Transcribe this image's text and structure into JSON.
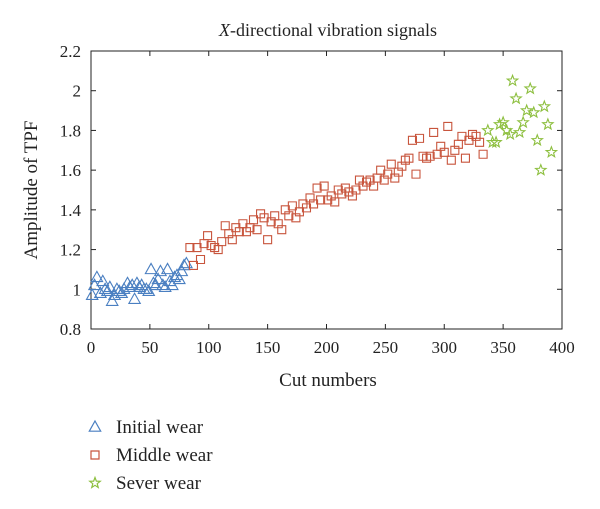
{
  "chart_data": {
    "type": "scatter",
    "title_italic": "X",
    "title_rest": "-directional vibration signals",
    "xlabel": "Cut numbers",
    "ylabel": "Amplitude of TPF",
    "xlim": [
      0,
      400
    ],
    "ylim": [
      0.8,
      2.2
    ],
    "xticks": [
      "0",
      "50",
      "100",
      "150",
      "200",
      "250",
      "300",
      "350",
      "400"
    ],
    "yticks": [
      "0.8",
      "1",
      "1.2",
      "1.4",
      "1.6",
      "1.8",
      "2",
      "2.2"
    ],
    "grid": false,
    "legend_placement": "below",
    "series": [
      {
        "name": "Initial wear",
        "marker": "triangle",
        "color": "#4a7fc1",
        "x": [
          1,
          3,
          5,
          8,
          10,
          12,
          14,
          16,
          18,
          20,
          22,
          24,
          26,
          28,
          31,
          33,
          35,
          37,
          39,
          41,
          43,
          45,
          47,
          49,
          51,
          53,
          55,
          57,
          59,
          61,
          63,
          65,
          67,
          69,
          71,
          73,
          75,
          77,
          79,
          81
        ],
        "y": [
          0.97,
          1.02,
          1.06,
          0.98,
          1.04,
          1.0,
          0.99,
          1.01,
          0.94,
          0.97,
          1.0,
          0.99,
          0.98,
          1.0,
          1.03,
          1.01,
          1.02,
          0.95,
          1.03,
          1.01,
          1.02,
          1.0,
          1.0,
          0.99,
          1.1,
          1.03,
          1.02,
          1.05,
          1.09,
          1.02,
          1.01,
          1.1,
          1.04,
          1.02,
          1.06,
          1.07,
          1.05,
          1.09,
          1.12,
          1.13
        ]
      },
      {
        "name": "Middle wear",
        "marker": "square",
        "color": "#c8553d",
        "x": [
          84,
          87,
          90,
          93,
          96,
          99,
          102,
          105,
          108,
          111,
          114,
          117,
          120,
          123,
          126,
          129,
          132,
          135,
          138,
          141,
          144,
          147,
          150,
          153,
          156,
          159,
          162,
          165,
          168,
          171,
          174,
          177,
          180,
          183,
          186,
          189,
          192,
          195,
          198,
          201,
          204,
          207,
          210,
          213,
          216,
          219,
          222,
          225,
          228,
          231,
          234,
          237,
          240,
          243,
          246,
          249,
          252,
          255,
          258,
          261,
          264,
          267,
          270,
          273,
          276,
          279,
          282,
          285,
          288,
          291,
          294,
          297,
          300,
          303,
          306,
          309,
          312,
          315,
          318,
          321,
          324,
          327,
          330,
          333
        ],
        "y": [
          1.21,
          1.12,
          1.21,
          1.15,
          1.23,
          1.27,
          1.22,
          1.21,
          1.2,
          1.24,
          1.32,
          1.28,
          1.25,
          1.31,
          1.29,
          1.33,
          1.29,
          1.31,
          1.35,
          1.3,
          1.38,
          1.36,
          1.25,
          1.34,
          1.37,
          1.33,
          1.3,
          1.4,
          1.37,
          1.42,
          1.36,
          1.39,
          1.43,
          1.41,
          1.46,
          1.43,
          1.51,
          1.45,
          1.52,
          1.45,
          1.47,
          1.44,
          1.5,
          1.48,
          1.51,
          1.49,
          1.47,
          1.5,
          1.55,
          1.52,
          1.54,
          1.55,
          1.52,
          1.56,
          1.6,
          1.55,
          1.58,
          1.63,
          1.56,
          1.59,
          1.62,
          1.65,
          1.66,
          1.75,
          1.58,
          1.76,
          1.67,
          1.66,
          1.67,
          1.79,
          1.68,
          1.72,
          1.69,
          1.82,
          1.65,
          1.7,
          1.73,
          1.77,
          1.66,
          1.75,
          1.78,
          1.77,
          1.74,
          1.68
        ]
      },
      {
        "name": "Sever wear",
        "marker": "star",
        "color": "#8dbf3f",
        "x": [
          337,
          341,
          344,
          347,
          350,
          353,
          356,
          358,
          361,
          364,
          367,
          370,
          373,
          376,
          379,
          382,
          385,
          388,
          391
        ],
        "y": [
          1.8,
          1.74,
          1.74,
          1.83,
          1.84,
          1.8,
          1.78,
          2.05,
          1.96,
          1.79,
          1.84,
          1.9,
          2.01,
          1.89,
          1.75,
          1.6,
          1.92,
          1.83,
          1.69
        ]
      }
    ]
  }
}
